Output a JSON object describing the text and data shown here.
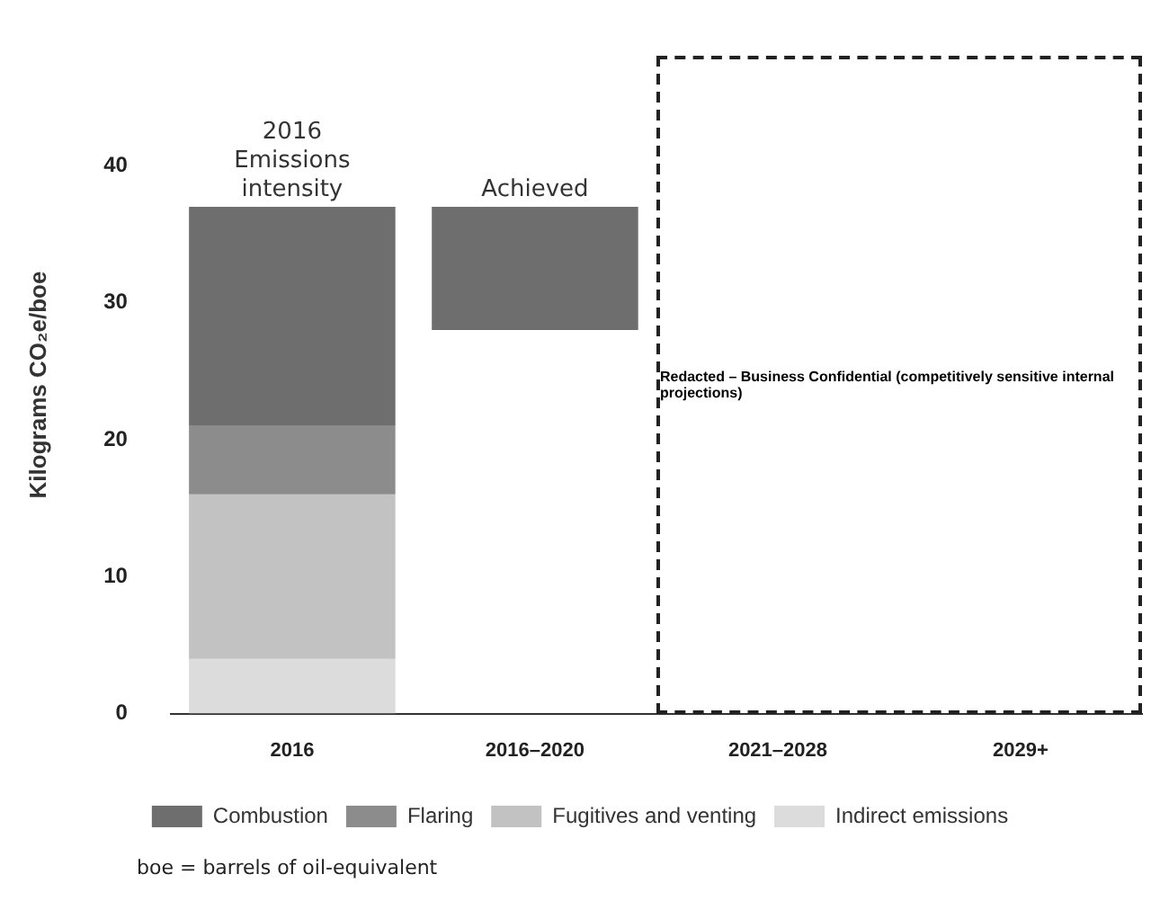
{
  "chart_data": {
    "type": "bar",
    "ylabel": "Kilograms CO₂e/boe",
    "categories": [
      "2016",
      "2016–2020",
      "2021–2028",
      "2029+"
    ],
    "series": [
      {
        "name": "Combustion",
        "color": "#6e6e6e",
        "values": [
          16,
          9,
          null,
          null
        ],
        "base": [
          21,
          28,
          null,
          null
        ]
      },
      {
        "name": "Flaring",
        "color": "#8c8c8c",
        "values": [
          5,
          null,
          null,
          null
        ],
        "base": [
          16,
          null,
          null,
          null
        ]
      },
      {
        "name": "Fugitives and venting",
        "color": "#c2c2c2",
        "values": [
          12,
          null,
          null,
          null
        ],
        "base": [
          4,
          null,
          null,
          null
        ]
      },
      {
        "name": "Indirect emissions",
        "color": "#dcdcdc",
        "values": [
          4,
          null,
          null,
          null
        ],
        "base": [
          0,
          null,
          null,
          null
        ]
      }
    ],
    "ylim": [
      0,
      48
    ],
    "yticks": [
      0,
      10,
      20,
      30,
      40
    ],
    "grid": false,
    "legend": "bottom",
    "annotations": [
      {
        "text": "2016 Emissions intensity",
        "x": "2016",
        "y": 37
      },
      {
        "text": "Achieved",
        "x": "2016–2020",
        "y": 37
      },
      "Redacted – Business Confidential (competitively sensitive internal projections)",
      "boe = barrels of oil-equivalent"
    ]
  }
}
